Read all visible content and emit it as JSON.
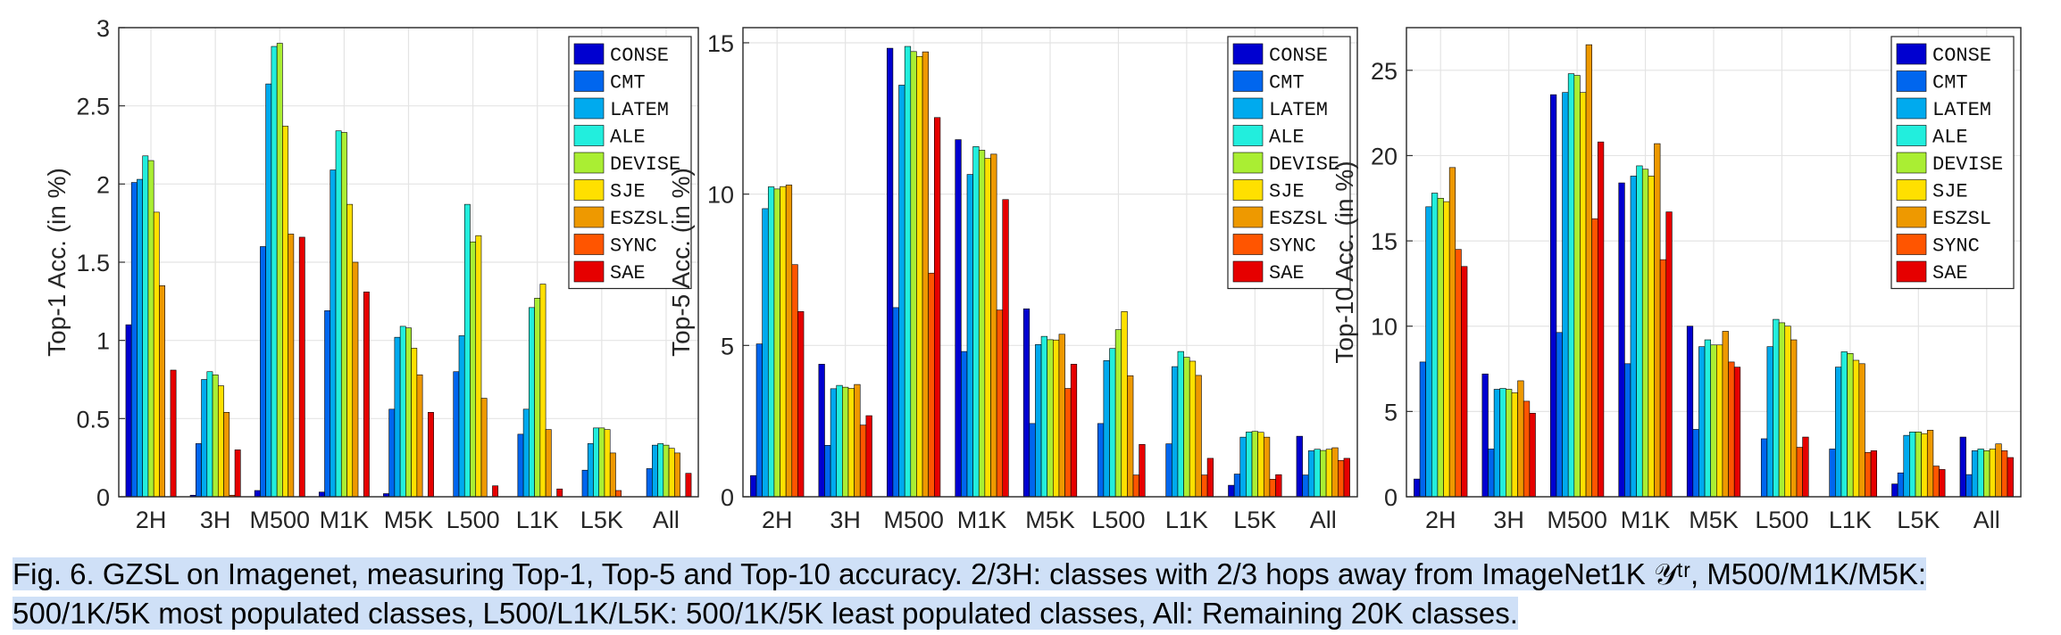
{
  "chart_data": [
    {
      "type": "bar",
      "categories": [
        "2H",
        "3H",
        "M500",
        "M1K",
        "M5K",
        "L500",
        "L1K",
        "L5K",
        "All"
      ],
      "ylabel": "Top-1 Acc. (in %)",
      "ylim": [
        0,
        3
      ],
      "yticks": [
        0,
        0.5,
        1,
        1.5,
        2,
        2.5,
        3
      ],
      "ytick_labels": [
        "0",
        "0.5",
        "1",
        "1.5",
        "2",
        "2.5",
        "3"
      ],
      "grid": true,
      "legend_position": "top-right",
      "series": [
        {
          "name": "CONSE",
          "values": [
            1.1,
            0.01,
            0.04,
            0.03,
            0.02,
            0.0,
            0.0,
            0.0,
            0.0
          ]
        },
        {
          "name": "CMT",
          "values": [
            2.01,
            0.34,
            1.6,
            1.19,
            0.56,
            0.8,
            0.4,
            0.17,
            0.18
          ]
        },
        {
          "name": "LATEM",
          "values": [
            2.03,
            0.75,
            2.64,
            2.09,
            1.02,
            1.03,
            0.56,
            0.34,
            0.33
          ]
        },
        {
          "name": "ALE",
          "values": [
            2.18,
            0.8,
            2.88,
            2.34,
            1.09,
            1.87,
            1.21,
            0.44,
            0.34
          ]
        },
        {
          "name": "DEVISE",
          "values": [
            2.15,
            0.78,
            2.9,
            2.33,
            1.08,
            1.63,
            1.27,
            0.44,
            0.33
          ]
        },
        {
          "name": "SJE",
          "values": [
            1.82,
            0.71,
            2.37,
            1.87,
            0.95,
            1.67,
            1.36,
            0.43,
            0.31
          ]
        },
        {
          "name": "ESZSL",
          "values": [
            1.35,
            0.54,
            1.68,
            1.5,
            0.78,
            0.63,
            0.43,
            0.28,
            0.28
          ]
        },
        {
          "name": "SYNC",
          "values": [
            0.0,
            0.01,
            0.0,
            0.0,
            0.0,
            0.0,
            0.0,
            0.04,
            0.0
          ]
        },
        {
          "name": "SAE",
          "values": [
            0.81,
            0.3,
            1.66,
            1.31,
            0.54,
            0.07,
            0.05,
            0.0,
            0.15
          ]
        }
      ]
    },
    {
      "type": "bar",
      "categories": [
        "2H",
        "3H",
        "M500",
        "M1K",
        "M5K",
        "L500",
        "L1K",
        "L5K",
        "All"
      ],
      "ylabel": "Top-5 Acc. (in %)",
      "ylim": [
        0,
        15.5
      ],
      "yticks": [
        0,
        5,
        10,
        15
      ],
      "ytick_labels": [
        "0",
        "5",
        "10",
        "15"
      ],
      "grid": true,
      "legend_position": "top-right",
      "series": [
        {
          "name": "CONSE",
          "values": [
            0.7,
            4.38,
            14.82,
            11.8,
            6.21,
            0.0,
            0.0,
            0.38,
            2.0
          ]
        },
        {
          "name": "CMT",
          "values": [
            5.05,
            1.7,
            6.25,
            4.8,
            2.42,
            2.42,
            1.75,
            0.75,
            0.72
          ]
        },
        {
          "name": "LATEM",
          "values": [
            9.52,
            3.57,
            13.6,
            10.65,
            5.03,
            4.5,
            4.3,
            1.97,
            1.52
          ]
        },
        {
          "name": "ALE",
          "values": [
            10.24,
            3.68,
            14.88,
            11.57,
            5.3,
            4.9,
            4.8,
            2.14,
            1.57
          ]
        },
        {
          "name": "DEVISE",
          "values": [
            10.17,
            3.62,
            14.71,
            11.45,
            5.19,
            5.52,
            4.61,
            2.16,
            1.53
          ]
        },
        {
          "name": "SJE",
          "values": [
            10.25,
            3.58,
            14.55,
            11.18,
            5.18,
            6.12,
            4.48,
            2.13,
            1.57
          ]
        },
        {
          "name": "ESZSL",
          "values": [
            10.3,
            3.71,
            14.7,
            11.32,
            5.37,
            4.0,
            4.01,
            1.97,
            1.62
          ]
        },
        {
          "name": "SYNC",
          "values": [
            7.67,
            2.37,
            7.39,
            6.17,
            3.58,
            0.72,
            0.72,
            0.58,
            1.2
          ]
        },
        {
          "name": "SAE",
          "values": [
            6.12,
            2.68,
            12.53,
            9.82,
            4.38,
            1.73,
            1.27,
            0.73,
            1.27
          ]
        }
      ]
    },
    {
      "type": "bar",
      "categories": [
        "2H",
        "3H",
        "M500",
        "M1K",
        "M5K",
        "L500",
        "L1K",
        "L5K",
        "All"
      ],
      "ylabel": "Top-10 Acc. (in %)",
      "ylim": [
        0,
        27.5
      ],
      "yticks": [
        0,
        5,
        10,
        15,
        20,
        25
      ],
      "ytick_labels": [
        "0",
        "5",
        "10",
        "15",
        "20",
        "25"
      ],
      "grid": true,
      "legend_position": "top-right",
      "series": [
        {
          "name": "CONSE",
          "values": [
            1.04,
            7.2,
            23.57,
            18.4,
            10.0,
            0.0,
            0.0,
            0.75,
            3.5
          ]
        },
        {
          "name": "CMT",
          "values": [
            7.9,
            2.8,
            9.63,
            7.8,
            3.95,
            3.4,
            2.8,
            1.4,
            1.3
          ]
        },
        {
          "name": "LATEM",
          "values": [
            17.0,
            6.3,
            23.7,
            18.8,
            8.8,
            8.8,
            7.6,
            3.6,
            2.7
          ]
        },
        {
          "name": "ALE",
          "values": [
            17.8,
            6.35,
            24.8,
            19.4,
            9.2,
            10.4,
            8.5,
            3.8,
            2.8
          ]
        },
        {
          "name": "DEVISE",
          "values": [
            17.5,
            6.3,
            24.7,
            19.2,
            8.9,
            10.2,
            8.4,
            3.8,
            2.7
          ]
        },
        {
          "name": "SJE",
          "values": [
            17.3,
            6.1,
            23.7,
            18.8,
            8.9,
            10.0,
            8.0,
            3.7,
            2.8
          ]
        },
        {
          "name": "ESZSL",
          "values": [
            19.3,
            6.8,
            26.5,
            20.7,
            9.7,
            9.2,
            7.8,
            3.9,
            3.1
          ]
        },
        {
          "name": "SYNC",
          "values": [
            14.5,
            5.6,
            16.3,
            13.9,
            7.9,
            2.9,
            2.6,
            1.8,
            2.7
          ]
        },
        {
          "name": "SAE",
          "values": [
            13.5,
            4.9,
            20.8,
            16.7,
            7.6,
            3.5,
            2.7,
            1.6,
            2.3
          ]
        }
      ]
    }
  ],
  "series_colors": [
    "#0000d0",
    "#0066ee",
    "#00aaee",
    "#22eedd",
    "#aaee33",
    "#ffe000",
    "#ee9900",
    "#ff5500",
    "#e60000"
  ],
  "caption": {
    "text": "Fig. 6. GZSL on Imagenet, measuring Top-1, Top-5 and Top-10 accuracy. 2/3H: classes with 2/3 hops away from ImageNet1K 𝒴ᵗʳ, M500/M1K/M5K: 500/1K/5K most populated classes, L500/L1K/L5K: 500/1K/5K least populated classes, All: Remaining 20K classes."
  }
}
